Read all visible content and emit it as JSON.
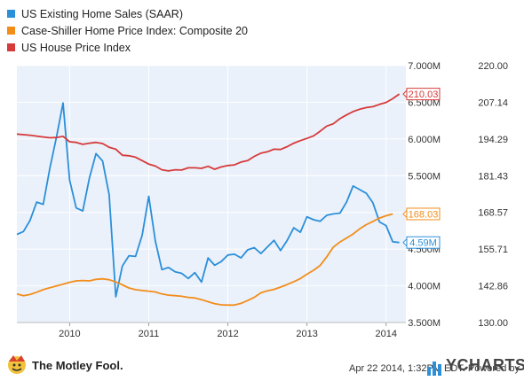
{
  "chart_data": {
    "type": "line",
    "title": "",
    "xlabel": "",
    "x_ticks": [
      "2010",
      "2011",
      "2012",
      "2013",
      "2014"
    ],
    "y_left": {
      "label": "",
      "range": [
        3.5,
        7.0
      ],
      "ticks": [
        "3.500M",
        "4.000M",
        "4.500M",
        "5.000M",
        "5.500M",
        "6.000M",
        "6.500M",
        "7.000M"
      ]
    },
    "y_right": {
      "label": "",
      "range": [
        130.0,
        220.0
      ],
      "ticks": [
        "130.00",
        "142.86",
        "155.71",
        "168.57",
        "181.43",
        "194.29",
        "207.14",
        "220.00"
      ]
    },
    "grid": true,
    "legend_position": "top-left",
    "series": [
      {
        "name": "US Existing Home Sales (SAAR)",
        "axis": "left",
        "color": "#2b8fd9",
        "last_value_label": "4.59M",
        "x": [
          "2009-05",
          "2009-06",
          "2009-07",
          "2009-08",
          "2009-09",
          "2009-10",
          "2009-11",
          "2009-12",
          "2010-01",
          "2010-02",
          "2010-03",
          "2010-04",
          "2010-05",
          "2010-06",
          "2010-07",
          "2010-08",
          "2010-09",
          "2010-10",
          "2010-11",
          "2010-12",
          "2011-01",
          "2011-02",
          "2011-03",
          "2011-04",
          "2011-05",
          "2011-06",
          "2011-07",
          "2011-08",
          "2011-09",
          "2011-10",
          "2011-11",
          "2011-12",
          "2012-01",
          "2012-02",
          "2012-03",
          "2012-04",
          "2012-05",
          "2012-06",
          "2012-07",
          "2012-08",
          "2012-09",
          "2012-10",
          "2012-11",
          "2012-12",
          "2013-01",
          "2013-02",
          "2013-03",
          "2013-04",
          "2013-05",
          "2013-06",
          "2013-07",
          "2013-08",
          "2013-09",
          "2013-10",
          "2013-11",
          "2013-12",
          "2014-01",
          "2014-02",
          "2014-03"
        ],
        "values": [
          4.7,
          4.74,
          4.89,
          5.14,
          5.11,
          5.6,
          6.02,
          6.49,
          5.44,
          5.06,
          5.02,
          5.47,
          5.8,
          5.7,
          5.24,
          3.85,
          4.27,
          4.41,
          4.4,
          4.69,
          5.22,
          4.61,
          4.22,
          4.25,
          4.19,
          4.17,
          4.1,
          4.18,
          4.05,
          4.38,
          4.28,
          4.33,
          4.42,
          4.43,
          4.38,
          4.49,
          4.52,
          4.44,
          4.53,
          4.62,
          4.48,
          4.62,
          4.79,
          4.73,
          4.94,
          4.9,
          4.88,
          4.96,
          4.98,
          4.99,
          5.14,
          5.36,
          5.31,
          5.26,
          5.13,
          4.87,
          4.82,
          4.6,
          4.59
        ]
      },
      {
        "name": "Case-Shiller Home Price Index: Composite 20",
        "axis": "right",
        "color": "#f28d1a",
        "last_value_label": "168.03",
        "x": [
          "2009-05",
          "2009-06",
          "2009-07",
          "2009-08",
          "2009-09",
          "2009-10",
          "2009-11",
          "2009-12",
          "2010-01",
          "2010-02",
          "2010-03",
          "2010-04",
          "2010-05",
          "2010-06",
          "2010-07",
          "2010-08",
          "2010-09",
          "2010-10",
          "2010-11",
          "2010-12",
          "2011-01",
          "2011-02",
          "2011-03",
          "2011-04",
          "2011-05",
          "2011-06",
          "2011-07",
          "2011-08",
          "2011-09",
          "2011-10",
          "2011-11",
          "2011-12",
          "2012-01",
          "2012-02",
          "2012-03",
          "2012-04",
          "2012-05",
          "2012-06",
          "2012-07",
          "2012-08",
          "2012-09",
          "2012-10",
          "2012-11",
          "2012-12",
          "2013-01",
          "2013-02",
          "2013-03",
          "2013-04",
          "2013-05",
          "2013-06",
          "2013-07",
          "2013-08",
          "2013-09",
          "2013-10",
          "2013-11",
          "2013-12",
          "2014-01",
          "2014-02"
        ],
        "values": [
          140.0,
          139.4,
          139.8,
          140.6,
          141.5,
          142.2,
          142.8,
          143.4,
          144.1,
          144.6,
          144.7,
          144.6,
          145.1,
          145.3,
          145.0,
          144.2,
          143.2,
          142.1,
          141.5,
          141.2,
          141.0,
          140.7,
          140.0,
          139.6,
          139.4,
          139.2,
          138.8,
          138.6,
          138.0,
          137.3,
          136.6,
          136.2,
          136.1,
          136.1,
          136.7,
          137.7,
          138.8,
          140.4,
          141.1,
          141.6,
          142.4,
          143.3,
          144.3,
          145.4,
          146.9,
          148.3,
          150.0,
          153.0,
          156.4,
          158.2,
          159.6,
          161.0,
          162.8,
          164.3,
          165.4,
          166.6,
          167.4,
          168.03
        ]
      },
      {
        "name": "US House Price Index",
        "axis": "right",
        "color": "#d63a3a",
        "last_value_label": "210.03",
        "x": [
          "2009-05",
          "2009-06",
          "2009-07",
          "2009-08",
          "2009-09",
          "2009-10",
          "2009-11",
          "2009-12",
          "2010-01",
          "2010-02",
          "2010-03",
          "2010-04",
          "2010-05",
          "2010-06",
          "2010-07",
          "2010-08",
          "2010-09",
          "2010-10",
          "2010-11",
          "2010-12",
          "2011-01",
          "2011-02",
          "2011-03",
          "2011-04",
          "2011-05",
          "2011-06",
          "2011-07",
          "2011-08",
          "2011-09",
          "2011-10",
          "2011-11",
          "2011-12",
          "2012-01",
          "2012-02",
          "2012-03",
          "2012-04",
          "2012-05",
          "2012-06",
          "2012-07",
          "2012-08",
          "2012-09",
          "2012-10",
          "2012-11",
          "2012-12",
          "2013-01",
          "2013-02",
          "2013-03",
          "2013-04",
          "2013-05",
          "2013-06",
          "2013-07",
          "2013-08",
          "2013-09",
          "2013-10",
          "2013-11",
          "2013-12",
          "2014-01",
          "2014-02",
          "2014-03"
        ],
        "values": [
          196.0,
          195.8,
          195.6,
          195.3,
          195.0,
          194.7,
          194.8,
          195.2,
          193.3,
          193.1,
          192.4,
          192.8,
          193.1,
          192.7,
          191.4,
          190.7,
          188.6,
          188.4,
          187.9,
          186.7,
          185.5,
          184.8,
          183.5,
          183.1,
          183.5,
          183.4,
          184.2,
          184.2,
          184.0,
          184.7,
          183.7,
          184.5,
          185.0,
          185.2,
          186.2,
          186.7,
          188.2,
          189.3,
          189.8,
          190.7,
          190.6,
          191.6,
          192.8,
          193.7,
          194.5,
          195.4,
          197.0,
          198.8,
          199.6,
          201.4,
          202.7,
          203.9,
          204.7,
          205.3,
          205.6,
          206.4,
          207.1,
          208.4,
          210.03
        ]
      }
    ]
  },
  "footer": {
    "timestamp_text": "Apr 22 2014, 1:32PM EDT.  Powered by",
    "brand_left": "The Motley Fool.",
    "brand_right": "YCHARTS"
  }
}
